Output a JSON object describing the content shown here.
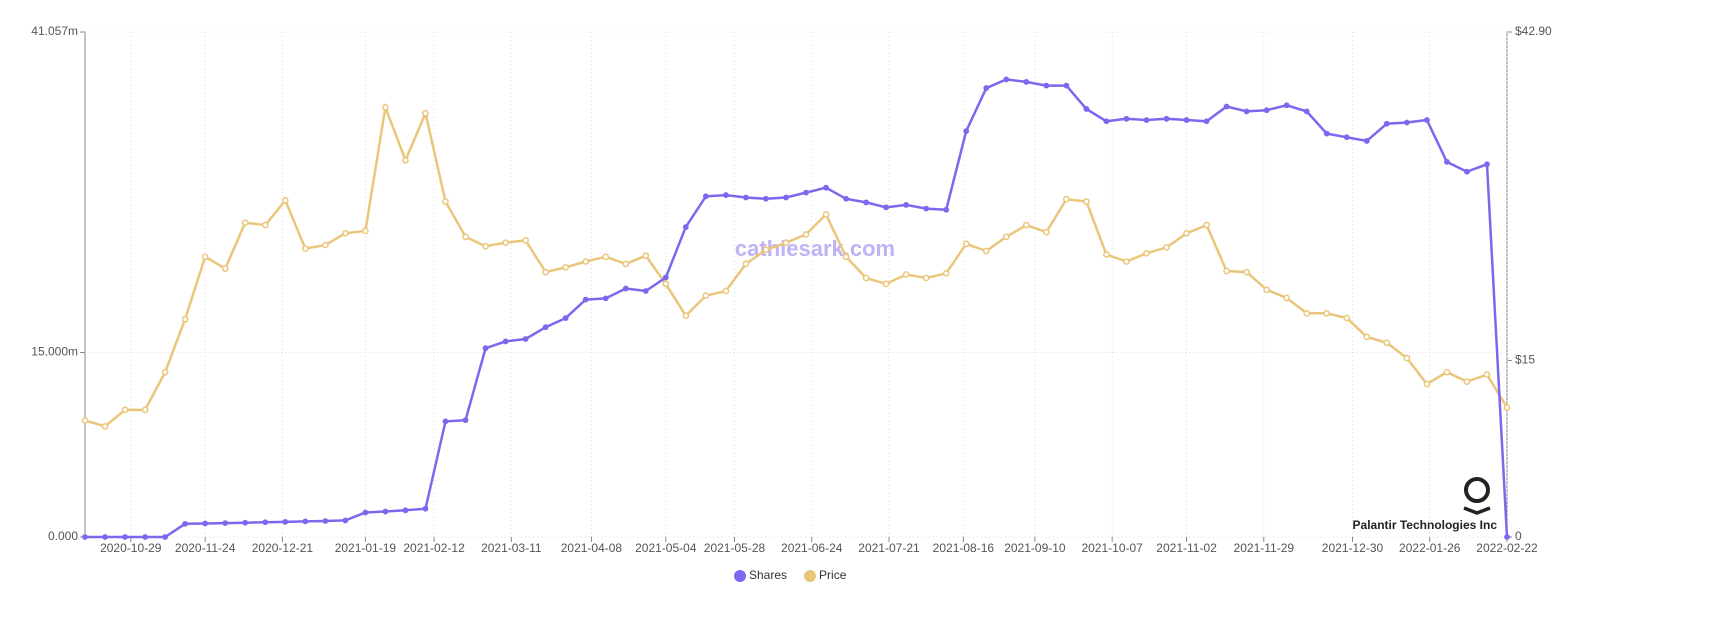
{
  "chart_data": {
    "type": "line",
    "x": [
      "2020-10-13",
      "2020-10-20",
      "2020-10-27",
      "2020-11-03",
      "2020-11-10",
      "2020-11-17",
      "2020-11-24",
      "2020-12-01",
      "2020-12-08",
      "2020-12-15",
      "2020-12-22",
      "2020-12-29",
      "2021-01-05",
      "2021-01-12",
      "2021-01-19",
      "2021-01-26",
      "2021-02-02",
      "2021-02-09",
      "2021-02-16",
      "2021-02-23",
      "2021-03-02",
      "2021-03-09",
      "2021-03-16",
      "2021-03-23",
      "2021-03-30",
      "2021-04-06",
      "2021-04-13",
      "2021-04-20",
      "2021-04-27",
      "2021-05-04",
      "2021-05-11",
      "2021-05-18",
      "2021-05-25",
      "2021-06-01",
      "2021-06-08",
      "2021-06-15",
      "2021-06-22",
      "2021-06-29",
      "2021-07-06",
      "2021-07-13",
      "2021-07-20",
      "2021-07-27",
      "2021-08-03",
      "2021-08-10",
      "2021-08-17",
      "2021-08-24",
      "2021-08-31",
      "2021-09-07",
      "2021-09-14",
      "2021-09-21",
      "2021-09-28",
      "2021-10-05",
      "2021-10-12",
      "2021-10-19",
      "2021-10-26",
      "2021-11-02",
      "2021-11-09",
      "2021-11-16",
      "2021-11-23",
      "2021-11-30",
      "2021-12-07",
      "2021-12-14",
      "2021-12-21",
      "2021-12-28",
      "2022-01-04",
      "2022-01-11",
      "2022-01-18",
      "2022-01-25",
      "2022-02-01",
      "2022-02-08",
      "2022-02-15",
      "2022-02-22"
    ],
    "series": [
      {
        "name": "Shares",
        "color": "#7b68ee",
        "values": [
          0,
          0,
          0,
          0,
          0,
          1070000,
          1100000,
          1130000,
          1160000,
          1200000,
          1230000,
          1270000,
          1300000,
          1350000,
          1990000,
          2070000,
          2170000,
          2300000,
          9400000,
          9500000,
          15350000,
          15900000,
          16100000,
          17060000,
          17800000,
          19300000,
          19400000,
          20200000,
          20000000,
          21100000,
          25200000,
          27700000,
          27800000,
          27600000,
          27500000,
          27600000,
          28000000,
          28400000,
          27500000,
          27200000,
          26800000,
          27000000,
          26700000,
          26600000,
          33000000,
          36500000,
          37200000,
          37000000,
          36700000,
          36700000,
          34800000,
          33800000,
          34000000,
          33900000,
          34000000,
          33900000,
          33800000,
          35000000,
          34600000,
          34700000,
          35100000,
          34600000,
          32800000,
          32500000,
          32200000,
          33600000,
          33700000,
          33900000,
          30500000,
          29700000,
          30300000,
          0
        ]
      },
      {
        "name": "Price",
        "color": "#eac67a",
        "axis": "y2",
        "values": [
          9.9,
          9.4,
          10.8,
          10.8,
          14.0,
          18.5,
          23.8,
          22.8,
          26.7,
          26.5,
          28.6,
          24.5,
          24.8,
          25.8,
          26.0,
          36.5,
          32.0,
          36.0,
          28.5,
          25.5,
          24.7,
          25.0,
          25.2,
          22.5,
          22.9,
          23.4,
          23.8,
          23.2,
          23.9,
          21.5,
          18.8,
          20.5,
          20.9,
          23.2,
          24.4,
          25.0,
          25.7,
          27.4,
          23.8,
          22.0,
          21.5,
          22.3,
          22.0,
          22.4,
          24.9,
          24.3,
          25.5,
          26.5,
          25.9,
          28.7,
          28.5,
          24.0,
          23.4,
          24.1,
          24.6,
          25.8,
          26.5,
          22.6,
          22.5,
          21.0,
          20.3,
          19.0,
          19.0,
          18.6,
          17.0,
          16.5,
          15.2,
          13.0,
          14.0,
          13.2,
          13.8,
          11.0
        ]
      }
    ],
    "xlim": [
      "2020-10-13",
      "2022-02-22"
    ],
    "xticks": [
      "2020-10-29",
      "2020-11-24",
      "2020-12-21",
      "2021-01-19",
      "2021-02-12",
      "2021-03-11",
      "2021-04-08",
      "2021-05-04",
      "2021-05-28",
      "2021-06-24",
      "2021-07-21",
      "2021-08-16",
      "2021-09-10",
      "2021-10-07",
      "2021-11-02",
      "2021-11-29",
      "2021-12-30",
      "2022-01-26",
      "2022-02-22"
    ],
    "ylim": [
      0,
      41057000
    ],
    "yticks": [
      {
        "value": 0,
        "label": "0.000"
      },
      {
        "value": 15000000,
        "label": "15.000m"
      },
      {
        "value": 41057000,
        "label": "41.057m"
      }
    ],
    "y2lim": [
      0,
      42.9
    ],
    "y2ticks": [
      0,
      {
        "value": 15,
        "label": "$15"
      },
      {
        "value": 42.9,
        "label": "$42.90"
      }
    ],
    "grid": true,
    "legend": "bottom",
    "watermark": "cathiesark.com",
    "annotation": "Palantir Technologies Inc"
  }
}
